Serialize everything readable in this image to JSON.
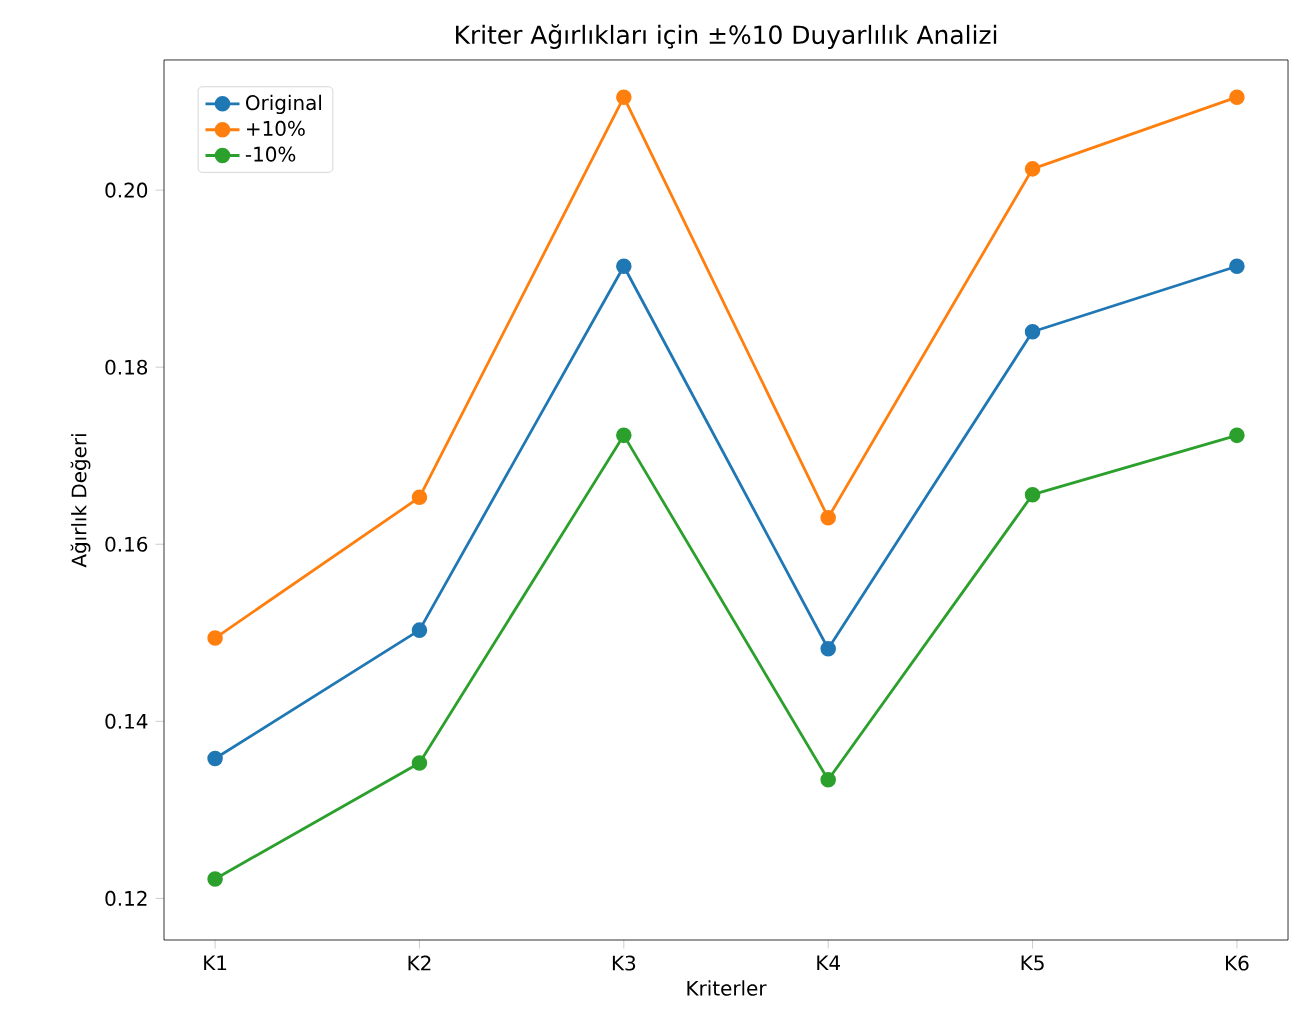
{
  "chart_data": {
    "type": "line",
    "title": "Kriter Ağırlıkları için ±%10 Duyarlılık Analizi",
    "xlabel": "Kriterler",
    "ylabel": "Ağırlık Değeri",
    "categories": [
      "K1",
      "K2",
      "K3",
      "K4",
      "K5",
      "K6"
    ],
    "series": [
      {
        "name": "Original",
        "color": "#1f77b4",
        "values": [
          0.1358,
          0.1503,
          0.1914,
          0.1482,
          0.184,
          0.1914
        ]
      },
      {
        "name": "+10%",
        "color": "#ff7f0e",
        "values": [
          0.1494,
          0.1653,
          0.2105,
          0.163,
          0.2024,
          0.2105
        ]
      },
      {
        "name": "-10%",
        "color": "#2ca02c",
        "values": [
          0.1222,
          0.1353,
          0.1723,
          0.1334,
          0.1656,
          0.1723
        ]
      }
    ],
    "ylim": [
      0.1153,
      0.2147
    ],
    "yticks": [
      0.12,
      0.14,
      0.16,
      0.18,
      {
        "value": 0.2,
        "label": "0.20"
      }
    ],
    "legend": "top left",
    "marker": "circle",
    "line_style": "solid",
    "grid": false
  }
}
